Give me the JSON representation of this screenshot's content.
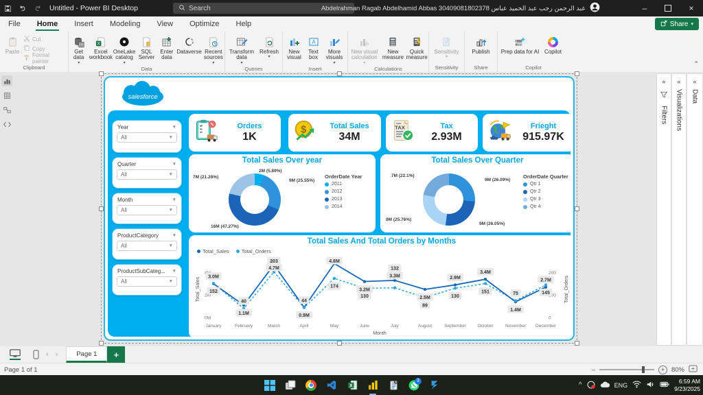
{
  "titlebar": {
    "title": "Untitled - Power BI Desktop",
    "search_placeholder": "Search",
    "account": "Abdelrahman Ragab Abdelhamid Abbas 30409081802378 عبد الرحمن رجب عبد الحميد عباس"
  },
  "menubar": {
    "tabs": [
      "File",
      "Home",
      "Insert",
      "Modeling",
      "View",
      "Optimize",
      "Help"
    ],
    "active_tab": "Home",
    "share_label": "Share"
  },
  "ribbon": {
    "groups": [
      {
        "label": "Clipboard",
        "items": [
          {
            "label": "Paste"
          },
          {
            "label": "Cut"
          },
          {
            "label": "Copy"
          },
          {
            "label": "Format painter"
          }
        ]
      },
      {
        "label": "Data",
        "items": [
          {
            "label": "Get data"
          },
          {
            "label": "Excel workbook"
          },
          {
            "label": "OneLake catalog"
          },
          {
            "label": "SQL Server"
          },
          {
            "label": "Enter data"
          },
          {
            "label": "Dataverse"
          },
          {
            "label": "Recent sources"
          }
        ]
      },
      {
        "label": "Queries",
        "items": [
          {
            "label": "Transform data"
          },
          {
            "label": "Refresh"
          }
        ]
      },
      {
        "label": "Insert",
        "items": [
          {
            "label": "New visual"
          },
          {
            "label": "Text box"
          },
          {
            "label": "More visuals"
          }
        ]
      },
      {
        "label": "Calculations",
        "items": [
          {
            "label": "New visual calculation"
          },
          {
            "label": "New measure"
          },
          {
            "label": "Quick measure"
          }
        ]
      },
      {
        "label": "Sensitivity",
        "items": [
          {
            "label": "Sensitivity"
          }
        ]
      },
      {
        "label": "Share",
        "items": [
          {
            "label": "Publish"
          }
        ]
      },
      {
        "label": "Copilot",
        "items": [
          {
            "label": "Prep data for AI"
          },
          {
            "label": "Copilot"
          }
        ]
      }
    ]
  },
  "dashboard": {
    "logo_text": "salesforce",
    "kpis": [
      {
        "label": "Orders",
        "value": "1K"
      },
      {
        "label": "Total Sales",
        "value": "34M"
      },
      {
        "label": "Tax",
        "value": "2.93M",
        "icon_text": "TAX"
      },
      {
        "label": "Frieght",
        "value": "915.97K"
      }
    ],
    "slicers": [
      {
        "title": "Year",
        "value": "All"
      },
      {
        "title": "Quarter",
        "value": "All"
      },
      {
        "title": "Month",
        "value": "All"
      },
      {
        "title": "ProductCategory",
        "value": "All"
      },
      {
        "title": "ProductSubCateg...",
        "value": "All"
      }
    ]
  },
  "chart_data": [
    {
      "type": "pie",
      "subtype": "donut",
      "title": "Total Sales Over year",
      "legend_title": "OrderDate Year",
      "legend_position": "right",
      "slices": [
        {
          "label": "2011",
          "value_m": 2,
          "pct": 5.89,
          "value_label": "2M (5.89%)",
          "color": "#00B0F0"
        },
        {
          "label": "2012",
          "value_m": 9,
          "pct": 25.55,
          "value_label": "9M (25.55%)",
          "color": "#2E93DB"
        },
        {
          "label": "2013",
          "value_m": 16,
          "pct": 47.27,
          "value_label": "16M (47.27%)",
          "color": "#1B64B8"
        },
        {
          "label": "2014",
          "value_m": 7,
          "pct": 21.28,
          "value_label": "7M (21.28%)",
          "color": "#9DC3E6"
        }
      ]
    },
    {
      "type": "pie",
      "subtype": "donut",
      "title": "Total Sales Over Quarter",
      "legend_title": "OrderDate Quarter",
      "legend_position": "right",
      "slices": [
        {
          "label": "Qtr 1",
          "value_m": 9,
          "pct": 26.09,
          "value_label": "9M (26.09%)",
          "color": "#2E93DB"
        },
        {
          "label": "Qtr 2",
          "value_m": 9,
          "pct": 26.05,
          "value_label": "9M (26.05%)",
          "color": "#1B64B8"
        },
        {
          "label": "Qtr 3",
          "value_m": 9,
          "pct": 25.76,
          "value_label": "9M (25.76%)",
          "color": "#A9D4F5"
        },
        {
          "label": "Qtr 4",
          "value_m": 7,
          "pct": 22.1,
          "value_label": "7M (22.1%)",
          "color": "#74A9DC"
        }
      ]
    },
    {
      "type": "line",
      "title": "Total Sales And Total Orders by Months",
      "xlabel": "Month",
      "categories": [
        "January",
        "February",
        "March",
        "April",
        "May",
        "June",
        "July",
        "August",
        "September",
        "October",
        "November",
        "December"
      ],
      "left_axis": {
        "title": "Total_Sales",
        "max_m": 5,
        "ticks": [
          {
            "label": "0M",
            "value_m": 0
          },
          {
            "label": "2M",
            "value_m": 2
          },
          {
            "label": "4M",
            "value_m": 4
          }
        ]
      },
      "right_axis": {
        "title": "Total_Orders",
        "max": 250,
        "ticks": [
          {
            "label": "0",
            "value": 0
          },
          {
            "label": "100",
            "value": 100
          },
          {
            "label": "200",
            "value": 200
          }
        ]
      },
      "series": [
        {
          "name": "Total_Sales",
          "axis": "left",
          "color": "#1766B5",
          "style": "solid",
          "values_m": [
            3.0,
            1.1,
            4.7,
            0.9,
            4.8,
            3.2,
            3.3,
            2.5,
            2.9,
            3.4,
            1.4,
            2.7
          ],
          "labels": [
            "3.0M",
            "1.1M",
            "4.7M",
            "0.9M",
            "4.8M",
            "3.2M",
            "3.3M",
            "2.5M",
            "2.9M",
            "3.4M",
            "1.4M",
            "2.7M"
          ],
          "label_above": [
            true,
            false,
            true,
            false,
            true,
            false,
            true,
            false,
            true,
            true,
            false,
            true
          ]
        },
        {
          "name": "Total_Orders",
          "axis": "right",
          "color": "#2BA7E4",
          "style": "dashed",
          "values": [
            152,
            40,
            203,
            44,
            174,
            130,
            132,
            89,
            130,
            151,
            75,
            145
          ],
          "labels": [
            "152",
            "40",
            "203",
            "44",
            "174",
            "130",
            "132",
            "89",
            "130",
            "151",
            "75",
            "145"
          ],
          "label_above": [
            false,
            true,
            true,
            true,
            false,
            false,
            true,
            false,
            false,
            false,
            true,
            false
          ]
        }
      ]
    }
  ],
  "right_panels": [
    {
      "label": "Filters"
    },
    {
      "label": "Visualizations"
    },
    {
      "label": "Data"
    }
  ],
  "pagebar": {
    "page_tab": "Page 1",
    "new_page_label": "+"
  },
  "statusbar": {
    "page_info": "Page 1 of 1",
    "zoom_level": "80%"
  },
  "taskbar": {
    "language": "ENG",
    "time": "6:59 AM",
    "date": "9/23/2025",
    "whatsapp_badge": "3"
  },
  "colors": {
    "dashboard_background": "#00AEEF",
    "chart_title": "#00A6E8",
    "accent_green": "#15784A",
    "titlebar": "#1F1F1F"
  }
}
